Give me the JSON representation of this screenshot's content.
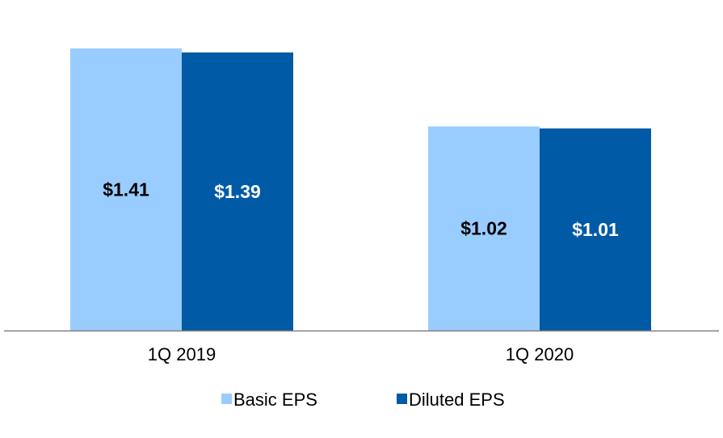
{
  "chart_data": {
    "type": "bar",
    "title": "",
    "xlabel": "",
    "ylabel": "",
    "categories": [
      "1Q 2019",
      "1Q 2020"
    ],
    "ylim": [
      0,
      1.45
    ],
    "grid": false,
    "legend_position": "bottom-center",
    "series": [
      {
        "name": "Basic EPS",
        "color": "#99ccff",
        "label_color": "#000000",
        "values": [
          1.41,
          1.02
        ],
        "labels": [
          "$1.41",
          "$1.02"
        ]
      },
      {
        "name": "Diluted EPS",
        "color": "#005aa6",
        "label_color": "#ffffff",
        "values": [
          1.39,
          1.01
        ],
        "labels": [
          "$1.39",
          "$1.01"
        ]
      }
    ],
    "axis_color": "#808080"
  }
}
